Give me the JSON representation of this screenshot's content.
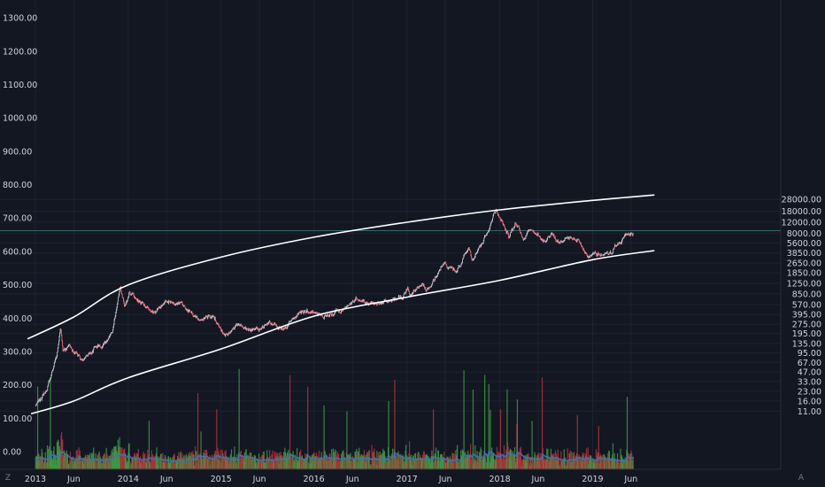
{
  "chart_data": {
    "type": "candlestick",
    "title": "",
    "grid": true,
    "x_range": [
      "2013-01-01",
      "2019-06-15"
    ],
    "x_ticks": [
      {
        "date": "2013-01-01",
        "label": "2013"
      },
      {
        "date": "2013-06-01",
        "label": "Jun"
      },
      {
        "date": "2014-01-01",
        "label": "2014"
      },
      {
        "date": "2014-06-01",
        "label": "Jun"
      },
      {
        "date": "2015-01-01",
        "label": "2015"
      },
      {
        "date": "2015-06-01",
        "label": "Jun"
      },
      {
        "date": "2016-01-01",
        "label": "2016"
      },
      {
        "date": "2016-06-01",
        "label": "Jun"
      },
      {
        "date": "2017-01-01",
        "label": "2017"
      },
      {
        "date": "2017-06-01",
        "label": "Jun"
      },
      {
        "date": "2018-01-01",
        "label": "2018"
      },
      {
        "date": "2018-06-01",
        "label": "Jun"
      },
      {
        "date": "2019-01-01",
        "label": "2019"
      },
      {
        "date": "2019-06-01",
        "label": "Jun"
      }
    ],
    "left_axis": {
      "label": "",
      "range": [
        -30,
        1350
      ],
      "ticks": [
        "0.00",
        "100.00",
        "200.00",
        "300.00",
        "400.00",
        "500.00",
        "600.00",
        "700.00",
        "800.00",
        "900.00",
        "1000.00",
        "1100.00",
        "1200.00",
        "1300.00"
      ]
    },
    "right_axis": {
      "label": "",
      "scale": "log",
      "ticks": [
        "28000.00",
        "18000.00",
        "12000.00",
        "8000.00",
        "5600.00",
        "3850.00",
        "2650.00",
        "1850.00",
        "1250.00",
        "850.00",
        "570.00",
        "395.00",
        "275.00",
        "195.00",
        "135.00",
        "95.00",
        "67.00",
        "47.00",
        "33.00",
        "23.00",
        "16.00",
        "11.00"
      ]
    },
    "price_keypoints": [
      {
        "date": "2013-01-01",
        "price": 13
      },
      {
        "date": "2013-02-15",
        "price": 25
      },
      {
        "date": "2013-03-25",
        "price": 90
      },
      {
        "date": "2013-04-10",
        "price": 230
      },
      {
        "date": "2013-04-20",
        "price": 100
      },
      {
        "date": "2013-05-15",
        "price": 120
      },
      {
        "date": "2013-07-05",
        "price": 70
      },
      {
        "date": "2013-08-20",
        "price": 115
      },
      {
        "date": "2013-10-01",
        "price": 130
      },
      {
        "date": "2013-11-01",
        "price": 200
      },
      {
        "date": "2013-11-30",
        "price": 1150
      },
      {
        "date": "2013-12-18",
        "price": 550
      },
      {
        "date": "2014-01-05",
        "price": 950
      },
      {
        "date": "2014-02-10",
        "price": 650
      },
      {
        "date": "2014-04-10",
        "price": 420
      },
      {
        "date": "2014-06-01",
        "price": 650
      },
      {
        "date": "2014-08-01",
        "price": 580
      },
      {
        "date": "2014-10-01",
        "price": 330
      },
      {
        "date": "2014-12-01",
        "price": 370
      },
      {
        "date": "2015-01-14",
        "price": 180
      },
      {
        "date": "2015-03-10",
        "price": 290
      },
      {
        "date": "2015-04-15",
        "price": 225
      },
      {
        "date": "2015-06-01",
        "price": 230
      },
      {
        "date": "2015-07-10",
        "price": 290
      },
      {
        "date": "2015-09-01",
        "price": 230
      },
      {
        "date": "2015-11-04",
        "price": 420
      },
      {
        "date": "2015-12-15",
        "price": 440
      },
      {
        "date": "2016-02-01",
        "price": 380
      },
      {
        "date": "2016-04-15",
        "price": 440
      },
      {
        "date": "2016-06-17",
        "price": 740
      },
      {
        "date": "2016-08-01",
        "price": 560
      },
      {
        "date": "2016-10-01",
        "price": 615
      },
      {
        "date": "2016-12-15",
        "price": 780
      },
      {
        "date": "2017-01-04",
        "price": 1130
      },
      {
        "date": "2017-01-11",
        "price": 780
      },
      {
        "date": "2017-03-01",
        "price": 1200
      },
      {
        "date": "2017-03-25",
        "price": 940
      },
      {
        "date": "2017-05-25",
        "price": 2600
      },
      {
        "date": "2017-07-15",
        "price": 1950
      },
      {
        "date": "2017-09-01",
        "price": 4900
      },
      {
        "date": "2017-09-15",
        "price": 3200
      },
      {
        "date": "2017-11-08",
        "price": 7400
      },
      {
        "date": "2017-12-17",
        "price": 19500
      },
      {
        "date": "2018-02-06",
        "price": 6900
      },
      {
        "date": "2018-03-05",
        "price": 11500
      },
      {
        "date": "2018-04-06",
        "price": 6700
      },
      {
        "date": "2018-05-05",
        "price": 9800
      },
      {
        "date": "2018-06-29",
        "price": 5800
      },
      {
        "date": "2018-07-25",
        "price": 8300
      },
      {
        "date": "2018-08-14",
        "price": 6000
      },
      {
        "date": "2018-10-15",
        "price": 6500
      },
      {
        "date": "2018-11-15",
        "price": 5600
      },
      {
        "date": "2018-12-15",
        "price": 3250
      },
      {
        "date": "2019-01-10",
        "price": 3900
      },
      {
        "date": "2019-02-07",
        "price": 3400
      },
      {
        "date": "2019-03-15",
        "price": 3950
      },
      {
        "date": "2019-04-02",
        "price": 5000
      },
      {
        "date": "2019-05-15",
        "price": 7900
      },
      {
        "date": "2019-06-10",
        "price": 7800
      }
    ],
    "candle_colors": {
      "up": "#c6c9d2",
      "down": "#f06f7a"
    },
    "volume_colors": {
      "up": "#3e9b45",
      "down": "#b3313c",
      "ma": "#3f73b8"
    },
    "upper_curve": [
      {
        "date": "2012-12-01",
        "price": 160
      },
      {
        "date": "2013-06-01",
        "price": 360
      },
      {
        "date": "2014-01-01",
        "price": 1180
      },
      {
        "date": "2015-01-01",
        "price": 3300
      },
      {
        "date": "2016-01-01",
        "price": 6900
      },
      {
        "date": "2017-01-01",
        "price": 12000
      },
      {
        "date": "2018-01-01",
        "price": 19000
      },
      {
        "date": "2019-01-01",
        "price": 27000
      },
      {
        "date": "2019-09-01",
        "price": 33000
      }
    ],
    "lower_curve": [
      {
        "date": "2012-12-15",
        "price": 10
      },
      {
        "date": "2013-06-01",
        "price": 16
      },
      {
        "date": "2014-01-01",
        "price": 38
      },
      {
        "date": "2015-01-01",
        "price": 110
      },
      {
        "date": "2016-01-01",
        "price": 370
      },
      {
        "date": "2017-01-01",
        "price": 750
      },
      {
        "date": "2018-01-01",
        "price": 1400
      },
      {
        "date": "2019-01-01",
        "price": 3000
      },
      {
        "date": "2019-09-01",
        "price": 4200
      }
    ],
    "horizontal_line": {
      "price": 8800,
      "color": "#2c6e6a"
    }
  },
  "ui": {
    "left_button": "Z",
    "right_button": "A"
  }
}
